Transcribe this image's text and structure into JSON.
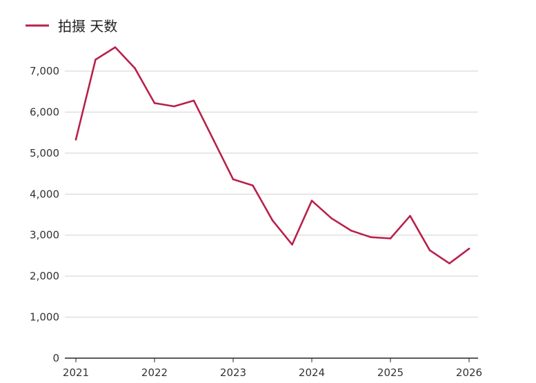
{
  "chart_data": {
    "type": "line",
    "title": "",
    "xlabel": "",
    "ylabel": "",
    "legend": {
      "position": "top-left",
      "entries": [
        "拍摄 天数"
      ]
    },
    "grid": {
      "horizontal": true,
      "vertical": false
    },
    "ylim": [
      0,
      7000
    ],
    "y_ticks": [
      0,
      1000,
      2000,
      3000,
      4000,
      5000,
      6000,
      7000
    ],
    "y_tick_labels": [
      "0",
      "1,000",
      "2,000",
      "3,000",
      "4,000",
      "5,000",
      "6,000",
      "7,000"
    ],
    "xlim": [
      2021.0,
      2026.0
    ],
    "x_ticks": [
      2021,
      2022,
      2023,
      2024,
      2025,
      2026
    ],
    "x_tick_labels": [
      "2021",
      "2022",
      "2023",
      "2024",
      "2025",
      "2026"
    ],
    "series": [
      {
        "name": "拍摄 天数",
        "color": "#b8204a",
        "x": [
          2021.0,
          2021.25,
          2021.5,
          2021.75,
          2022.0,
          2022.25,
          2022.5,
          2022.75,
          2023.0,
          2023.25,
          2023.5,
          2023.75,
          2024.0,
          2024.25,
          2024.5,
          2024.75,
          2025.0,
          2025.25,
          2025.5,
          2025.75,
          2026.0
        ],
        "values": [
          5330,
          7280,
          7580,
          7070,
          6220,
          6140,
          6280,
          5320,
          4360,
          4210,
          3360,
          2770,
          3840,
          3410,
          3110,
          2950,
          2920,
          3470,
          2630,
          2310,
          2670
        ]
      }
    ]
  }
}
